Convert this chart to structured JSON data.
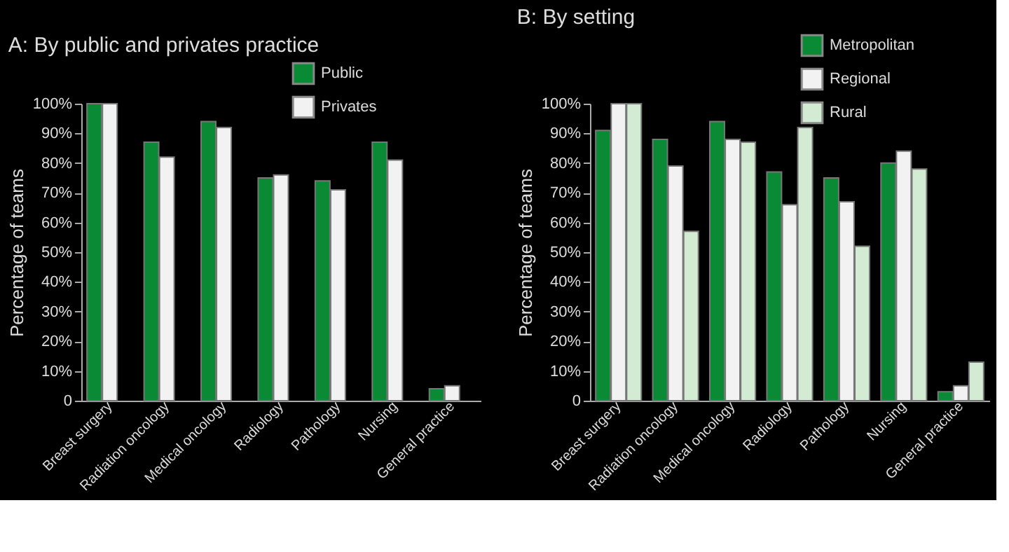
{
  "chart_data": [
    {
      "type": "bar",
      "title": "A: By public and privates practice",
      "ylabel": "Percentage of teams",
      "categories": [
        "Breast surgery",
        "Radiation oncology",
        "Medical oncology",
        "Radiology",
        "Pathology",
        "Nursing",
        "General practice"
      ],
      "series": [
        {
          "name": "Public",
          "color": "#0a8a34",
          "values": [
            100,
            87,
            94,
            75,
            74,
            87,
            4
          ]
        },
        {
          "name": "Privates",
          "color": "#f2f2f2",
          "values": [
            100,
            82,
            92,
            76,
            71,
            81,
            5
          ]
        }
      ],
      "ylim": [
        0,
        100
      ],
      "yticks": [
        0,
        {
          "value": 10,
          "label": "10%"
        },
        {
          "value": 20,
          "label": "20%"
        },
        {
          "value": 30,
          "label": "30%"
        },
        {
          "value": 40,
          "label": "40%"
        },
        {
          "value": 50,
          "label": "50%"
        },
        {
          "value": 60,
          "label": "60%"
        },
        {
          "value": 70,
          "label": "70%"
        },
        {
          "value": 80,
          "label": "80%"
        },
        {
          "value": 90,
          "label": "90%"
        },
        {
          "value": 100,
          "label": "100%"
        }
      ],
      "grid": false,
      "legend": "top right"
    },
    {
      "type": "bar",
      "title": "B: By setting",
      "ylabel": "Percentage of teams",
      "categories": [
        "Breast surgery",
        "Radiation oncology",
        "Medical oncology",
        "Radiology",
        "Pathology",
        "Nursing",
        "General practice"
      ],
      "series": [
        {
          "name": "Metropolitan",
          "color": "#0a8a34",
          "values": [
            91,
            88,
            94,
            77,
            75,
            80,
            3
          ]
        },
        {
          "name": "Regional",
          "color": "#f2f2f2",
          "values": [
            100,
            79,
            88,
            66,
            67,
            84,
            5
          ]
        },
        {
          "name": "Rural",
          "color": "#d3ead3",
          "values": [
            100,
            57,
            87,
            92,
            52,
            78,
            13
          ]
        }
      ],
      "ylim": [
        0,
        100
      ],
      "yticks": [
        0,
        {
          "value": 10,
          "label": "10%"
        },
        {
          "value": 20,
          "label": "20%"
        },
        {
          "value": 30,
          "label": "30%"
        },
        {
          "value": 40,
          "label": "40%"
        },
        {
          "value": 50,
          "label": "50%"
        },
        {
          "value": 60,
          "label": "60%"
        },
        {
          "value": 70,
          "label": "70%"
        },
        {
          "value": 80,
          "label": "80%"
        },
        {
          "value": 90,
          "label": "90%"
        },
        {
          "value": 100,
          "label": "100%"
        }
      ],
      "grid": false,
      "legend": "top right"
    }
  ]
}
